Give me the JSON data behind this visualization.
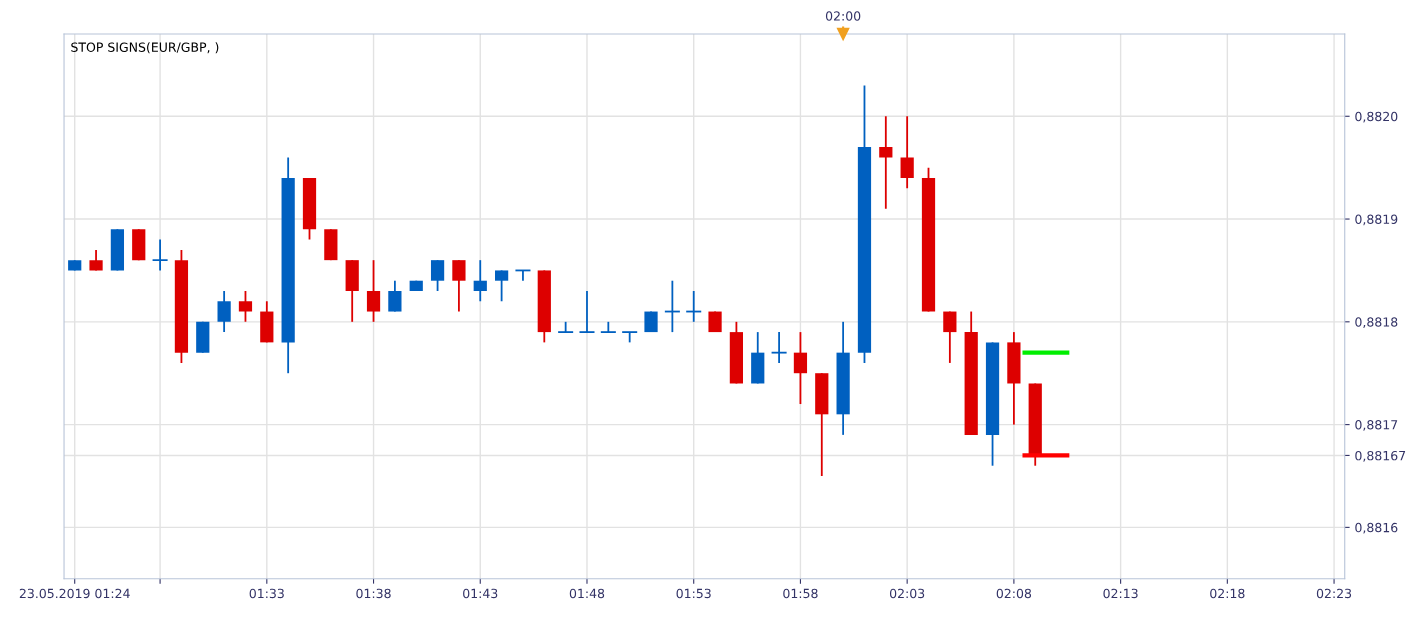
{
  "chart_data": {
    "type": "candlestick",
    "title": "STOP SIGNS(EUR/GBP, )",
    "x": [
      "2019-05-23T01:24",
      "2019-05-23T01:25",
      "2019-05-23T01:26",
      "2019-05-23T01:27",
      "2019-05-23T01:28",
      "2019-05-23T01:29",
      "2019-05-23T01:30",
      "2019-05-23T01:31",
      "2019-05-23T01:32",
      "2019-05-23T01:33",
      "2019-05-23T01:34",
      "2019-05-23T01:35",
      "2019-05-23T01:36",
      "2019-05-23T01:37",
      "2019-05-23T01:38",
      "2019-05-23T01:39",
      "2019-05-23T01:40",
      "2019-05-23T01:41",
      "2019-05-23T01:42",
      "2019-05-23T01:43",
      "2019-05-23T01:44",
      "2019-05-23T01:45",
      "2019-05-23T01:46",
      "2019-05-23T01:47",
      "2019-05-23T01:48",
      "2019-05-23T01:49",
      "2019-05-23T01:50",
      "2019-05-23T01:51",
      "2019-05-23T01:52",
      "2019-05-23T01:53",
      "2019-05-23T01:54",
      "2019-05-23T01:55",
      "2019-05-23T01:56",
      "2019-05-23T01:57",
      "2019-05-23T01:58",
      "2019-05-23T01:59",
      "2019-05-23T02:00",
      "2019-05-23T02:01",
      "2019-05-23T02:02",
      "2019-05-23T02:03",
      "2019-05-23T02:04",
      "2019-05-23T02:05",
      "2019-05-23T02:06",
      "2019-05-23T02:07",
      "2019-05-23T02:08",
      "2019-05-23T02:09"
    ],
    "ohlc": [
      [
        0.88185,
        0.88186,
        0.88185,
        0.88186
      ],
      [
        0.88186,
        0.88187,
        0.88185,
        0.88185
      ],
      [
        0.88185,
        0.88189,
        0.88185,
        0.88189
      ],
      [
        0.88189,
        0.88189,
        0.88186,
        0.88186
      ],
      [
        0.88186,
        0.88188,
        0.88185,
        0.88186
      ],
      [
        0.88186,
        0.88187,
        0.88176,
        0.88177
      ],
      [
        0.88177,
        0.8818,
        0.88177,
        0.8818
      ],
      [
        0.8818,
        0.88183,
        0.88179,
        0.88182
      ],
      [
        0.88182,
        0.88183,
        0.8818,
        0.88181
      ],
      [
        0.88181,
        0.88182,
        0.88178,
        0.88178
      ],
      [
        0.88178,
        0.88196,
        0.88175,
        0.88194
      ],
      [
        0.88194,
        0.88194,
        0.88188,
        0.88189
      ],
      [
        0.88189,
        0.88189,
        0.88186,
        0.88186
      ],
      [
        0.88186,
        0.88186,
        0.8818,
        0.88183
      ],
      [
        0.88183,
        0.88186,
        0.8818,
        0.88181
      ],
      [
        0.88181,
        0.88184,
        0.88181,
        0.88183
      ],
      [
        0.88183,
        0.88184,
        0.88183,
        0.88184
      ],
      [
        0.88184,
        0.88186,
        0.88183,
        0.88186
      ],
      [
        0.88186,
        0.88186,
        0.88181,
        0.88184
      ],
      [
        0.88183,
        0.88186,
        0.88182,
        0.88184
      ],
      [
        0.88184,
        0.88185,
        0.88182,
        0.88185
      ],
      [
        0.88185,
        0.88185,
        0.88184,
        0.88185
      ],
      [
        0.88185,
        0.88185,
        0.88178,
        0.88179
      ],
      [
        0.88179,
        0.8818,
        0.88179,
        0.88179
      ],
      [
        0.88179,
        0.88183,
        0.88179,
        0.88179
      ],
      [
        0.88179,
        0.8818,
        0.88179,
        0.88179
      ],
      [
        0.88179,
        0.88179,
        0.88178,
        0.88179
      ],
      [
        0.88179,
        0.88181,
        0.88179,
        0.88181
      ],
      [
        0.88181,
        0.88184,
        0.88179,
        0.88181
      ],
      [
        0.88181,
        0.88183,
        0.8818,
        0.88181
      ],
      [
        0.88181,
        0.88181,
        0.88179,
        0.88179
      ],
      [
        0.88179,
        0.8818,
        0.88174,
        0.88174
      ],
      [
        0.88174,
        0.88179,
        0.88174,
        0.88177
      ],
      [
        0.88177,
        0.88179,
        0.88176,
        0.88177
      ],
      [
        0.88177,
        0.88179,
        0.88172,
        0.88175
      ],
      [
        0.88175,
        0.88175,
        0.88165,
        0.88171
      ],
      [
        0.88171,
        0.8818,
        0.88169,
        0.88177
      ],
      [
        0.88177,
        0.88203,
        0.88176,
        0.88197
      ],
      [
        0.88197,
        0.882,
        0.88191,
        0.88196
      ],
      [
        0.88196,
        0.882,
        0.88193,
        0.88194
      ],
      [
        0.88194,
        0.88195,
        0.88181,
        0.88181
      ],
      [
        0.88181,
        0.88181,
        0.88176,
        0.88179
      ],
      [
        0.88179,
        0.88181,
        0.88169,
        0.88169
      ],
      [
        0.88169,
        0.88178,
        0.88166,
        0.88178
      ],
      [
        0.88178,
        0.88179,
        0.8817,
        0.88174
      ],
      [
        0.88174,
        0.88174,
        0.88166,
        0.88167
      ]
    ],
    "colors": [
      "#0060c0",
      "#dd0000",
      "#0060c0",
      "#dd0000",
      "#0060c0",
      "#dd0000",
      "#0060c0",
      "#0060c0",
      "#dd0000",
      "#dd0000",
      "#0060c0",
      "#dd0000",
      "#dd0000",
      "#dd0000",
      "#dd0000",
      "#0060c0",
      "#0060c0",
      "#0060c0",
      "#dd0000",
      "#0060c0",
      "#0060c0",
      "#0060c0",
      "#dd0000",
      "#0060c0",
      "#0060c0",
      "#0060c0",
      "#0060c0",
      "#0060c0",
      "#0060c0",
      "#0060c0",
      "#dd0000",
      "#dd0000",
      "#0060c0",
      "#0060c0",
      "#dd0000",
      "#dd0000",
      "#0060c0",
      "#0060c0",
      "#dd0000",
      "#dd0000",
      "#dd0000",
      "#dd0000",
      "#dd0000",
      "#0060c0",
      "#dd0000",
      "#dd0000"
    ],
    "series": [
      {
        "type": "line",
        "color": "#00ee00",
        "x": [
          "2019-05-23T02:08:30",
          "2019-05-23T02:10:30"
        ],
        "values": [
          0.88177,
          0.88177
        ]
      },
      {
        "type": "line",
        "color": "#ff0000",
        "x": [
          "2019-05-23T02:08:30",
          "2019-05-23T02:10:30"
        ],
        "values": [
          0.88167,
          0.88167
        ]
      }
    ],
    "xlim": [
      "2019-05-23T01:23:30",
      "2019-05-23T02:23:30"
    ],
    "xticks": [
      {
        "value": "2019-05-23T01:24",
        "label": "23.05.2019 01:24"
      },
      {
        "value": "2019-05-23T01:28",
        "label": null
      },
      {
        "value": "2019-05-23T01:33",
        "label": "01:33"
      },
      {
        "value": "2019-05-23T01:38",
        "label": "01:38"
      },
      {
        "value": "2019-05-23T01:43",
        "label": "01:43"
      },
      {
        "value": "2019-05-23T01:48",
        "label": "01:48"
      },
      {
        "value": "2019-05-23T01:53",
        "label": "01:53"
      },
      {
        "value": "2019-05-23T01:58",
        "label": "01:58"
      },
      {
        "value": "2019-05-23T02:03",
        "label": "02:03"
      },
      {
        "value": "2019-05-23T02:08",
        "label": "02:08"
      },
      {
        "value": "2019-05-23T02:13",
        "label": "02:13"
      },
      {
        "value": "2019-05-23T02:18",
        "label": "02:18"
      },
      {
        "value": "2019-05-23T02:23",
        "label": "02:23"
      }
    ],
    "ref_lines": [
      {
        "axis": "x",
        "value": "2019-05-23T02:00",
        "label": "02:00",
        "color": "#f0a020"
      }
    ],
    "ylim": [
      0.88155,
      0.88208
    ],
    "yticks": [
      {
        "value": 0.8816,
        "label": "0,8816"
      },
      {
        "value": 0.88167,
        "label": "0,88167"
      },
      {
        "value": 0.8817,
        "label": "0,8817"
      },
      {
        "value": 0.8818,
        "label": "0,8818"
      },
      {
        "value": 0.8819,
        "label": "0,8819"
      },
      {
        "value": 0.882,
        "label": "0,8820"
      }
    ],
    "grid": true,
    "legend": false
  }
}
